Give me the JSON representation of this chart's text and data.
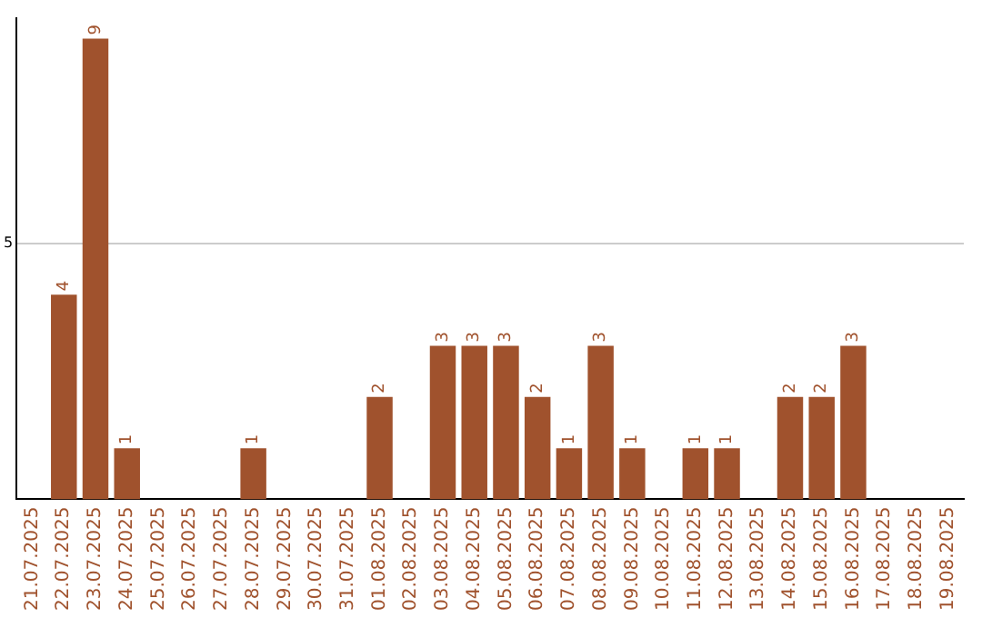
{
  "chart_data": {
    "type": "bar",
    "categories": [
      "21.07.2025",
      "22.07.2025",
      "23.07.2025",
      "24.07.2025",
      "25.07.2025",
      "26.07.2025",
      "27.07.2025",
      "28.07.2025",
      "29.07.2025",
      "30.07.2025",
      "31.07.2025",
      "01.08.2025",
      "02.08.2025",
      "03.08.2025",
      "04.08.2025",
      "05.08.2025",
      "06.08.2025",
      "07.08.2025",
      "08.08.2025",
      "09.08.2025",
      "10.08.2025",
      "11.08.2025",
      "12.08.2025",
      "13.08.2025",
      "14.08.2025",
      "15.08.2025",
      "16.08.2025",
      "17.08.2025",
      "18.08.2025",
      "19.08.2025"
    ],
    "values": [
      0,
      4,
      9,
      1,
      0,
      0,
      0,
      1,
      0,
      0,
      0,
      2,
      0,
      3,
      3,
      3,
      2,
      1,
      3,
      1,
      0,
      1,
      1,
      0,
      2,
      2,
      3,
      0,
      0,
      0
    ],
    "value_labels": [
      null,
      "4",
      "9",
      "1",
      null,
      null,
      null,
      "1",
      null,
      null,
      null,
      "2",
      null,
      "3",
      "3",
      "3",
      "2",
      "1",
      "3",
      "1",
      null,
      "1",
      "1",
      null,
      "2",
      "2",
      "3",
      null,
      null,
      null
    ],
    "color": "#a0522d",
    "ylim": [
      0,
      9.4
    ],
    "yticks": [
      5
    ],
    "grid": "y",
    "legend": false
  }
}
